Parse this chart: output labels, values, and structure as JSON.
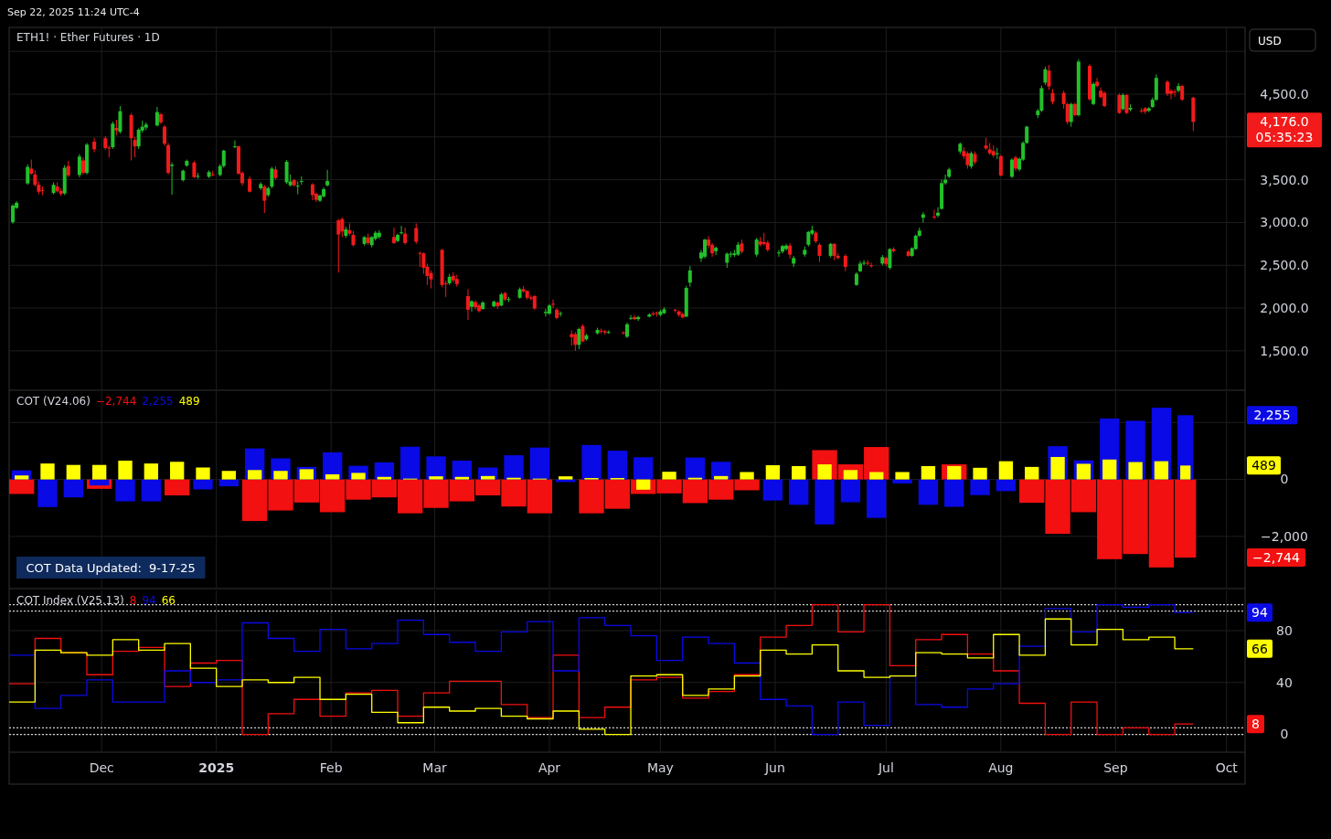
{
  "chart_data": [
    {
      "type": "candlestick",
      "title": "ETH1! · Ether Futures · 1D",
      "subtitle": "Sep 22, 2025 11:24 UTC-4",
      "ylabel": "USD",
      "annotations": [
        "4,176.0",
        "05:35:23"
      ],
      "grid": true,
      "tick_labels": "y",
      "xlim": [
        "2024-11-06",
        "2025-10-06"
      ],
      "xticks": [
        {
          "value": "2024-12-01",
          "label": null
        },
        {
          "value": "2025-01-01",
          "label": null
        },
        {
          "value": "2025-02-01",
          "label": null
        },
        {
          "value": "2025-03-01",
          "label": null
        },
        {
          "value": "2025-04-01",
          "label": null
        },
        {
          "value": "2025-05-01",
          "label": null
        },
        {
          "value": "2025-06-01",
          "label": null
        },
        {
          "value": "2025-07-01",
          "label": null
        },
        {
          "value": "2025-08-01",
          "label": null
        },
        {
          "value": "2025-09-01",
          "label": null
        },
        {
          "value": "2025-10-01",
          "label": null
        }
      ],
      "ylim": [
        1050,
        5280
      ],
      "yticks": [
        {
          "value": 1500,
          "label": "1,500.0"
        },
        {
          "value": 2000,
          "label": "2,000.0"
        },
        {
          "value": 2500,
          "label": "2,500.0"
        },
        {
          "value": 3000,
          "label": "3,000.0"
        },
        {
          "value": 3500,
          "label": "3,500.0"
        },
        {
          "value": 4000,
          "label": null
        },
        {
          "value": 4500,
          "label": "4,500.0"
        },
        {
          "value": 5000,
          "label": null
        }
      ],
      "x": [
        "2024-11-07",
        "2024-11-08",
        "2024-11-11",
        "2024-11-12",
        "2024-11-13",
        "2024-11-14",
        "2024-11-15",
        "2024-11-18",
        "2024-11-19",
        "2024-11-20",
        "2024-11-21",
        "2024-11-22",
        "2024-11-25",
        "2024-11-26",
        "2024-11-27",
        "2024-11-29",
        "2024-12-02",
        "2024-12-03",
        "2024-12-04",
        "2024-12-05",
        "2024-12-06",
        "2024-12-09",
        "2024-12-10",
        "2024-12-11",
        "2024-12-12",
        "2024-12-13",
        "2024-12-16",
        "2024-12-17",
        "2024-12-18",
        "2024-12-19",
        "2024-12-20",
        "2024-12-23",
        "2024-12-24",
        "2024-12-26",
        "2024-12-27",
        "2024-12-30",
        "2024-12-31",
        "2025-01-02",
        "2025-01-03",
        "2025-01-06",
        "2025-01-07",
        "2025-01-08",
        "2025-01-10",
        "2025-01-13",
        "2025-01-14",
        "2025-01-15",
        "2025-01-16",
        "2025-01-17",
        "2025-01-20",
        "2025-01-21",
        "2025-01-22",
        "2025-01-23",
        "2025-01-24",
        "2025-01-27",
        "2025-01-28",
        "2025-01-29",
        "2025-01-30",
        "2025-01-31",
        "2025-02-03",
        "2025-02-04",
        "2025-02-05",
        "2025-02-06",
        "2025-02-07",
        "2025-02-10",
        "2025-02-11",
        "2025-02-12",
        "2025-02-13",
        "2025-02-14",
        "2025-02-18",
        "2025-02-19",
        "2025-02-20",
        "2025-02-21",
        "2025-02-24",
        "2025-02-25",
        "2025-02-26",
        "2025-02-27",
        "2025-02-28",
        "2025-03-03",
        "2025-03-04",
        "2025-03-05",
        "2025-03-06",
        "2025-03-07",
        "2025-03-10",
        "2025-03-11",
        "2025-03-12",
        "2025-03-13",
        "2025-03-14",
        "2025-03-17",
        "2025-03-18",
        "2025-03-19",
        "2025-03-20",
        "2025-03-21",
        "2025-03-24",
        "2025-03-25",
        "2025-03-26",
        "2025-03-27",
        "2025-03-28",
        "2025-03-31",
        "2025-04-01",
        "2025-04-02",
        "2025-04-03",
        "2025-04-04",
        "2025-04-07",
        "2025-04-08",
        "2025-04-09",
        "2025-04-10",
        "2025-04-11",
        "2025-04-14",
        "2025-04-15",
        "2025-04-16",
        "2025-04-17",
        "2025-04-21",
        "2025-04-22",
        "2025-04-23",
        "2025-04-24",
        "2025-04-25",
        "2025-04-28",
        "2025-04-29",
        "2025-04-30",
        "2025-05-01",
        "2025-05-02",
        "2025-05-05",
        "2025-05-06",
        "2025-05-07",
        "2025-05-08",
        "2025-05-09",
        "2025-05-12",
        "2025-05-13",
        "2025-05-14",
        "2025-05-15",
        "2025-05-16",
        "2025-05-19",
        "2025-05-20",
        "2025-05-21",
        "2025-05-22",
        "2025-05-23",
        "2025-05-27",
        "2025-05-28",
        "2025-05-29",
        "2025-05-30",
        "2025-06-02",
        "2025-06-03",
        "2025-06-04",
        "2025-06-05",
        "2025-06-06",
        "2025-06-09",
        "2025-06-10",
        "2025-06-11",
        "2025-06-12",
        "2025-06-13",
        "2025-06-16",
        "2025-06-17",
        "2025-06-18",
        "2025-06-20",
        "2025-06-23",
        "2025-06-24",
        "2025-06-25",
        "2025-06-26",
        "2025-06-27",
        "2025-06-30",
        "2025-07-01",
        "2025-07-02",
        "2025-07-03",
        "2025-07-07",
        "2025-07-08",
        "2025-07-09",
        "2025-07-10",
        "2025-07-11",
        "2025-07-14",
        "2025-07-15",
        "2025-07-16",
        "2025-07-17",
        "2025-07-18",
        "2025-07-21",
        "2025-07-22",
        "2025-07-23",
        "2025-07-24",
        "2025-07-25",
        "2025-07-28",
        "2025-07-29",
        "2025-07-30",
        "2025-07-31",
        "2025-08-01",
        "2025-08-04",
        "2025-08-05",
        "2025-08-06",
        "2025-08-07",
        "2025-08-08",
        "2025-08-11",
        "2025-08-12",
        "2025-08-13",
        "2025-08-14",
        "2025-08-15",
        "2025-08-18",
        "2025-08-19",
        "2025-08-20",
        "2025-08-21",
        "2025-08-22",
        "2025-08-25",
        "2025-08-26",
        "2025-08-27",
        "2025-08-28",
        "2025-08-29",
        "2025-09-02",
        "2025-09-03",
        "2025-09-04",
        "2025-09-05",
        "2025-09-08",
        "2025-09-09",
        "2025-09-10",
        "2025-09-11",
        "2025-09-12",
        "2025-09-15",
        "2025-09-16",
        "2025-09-17",
        "2025-09-18",
        "2025-09-19",
        "2025-09-22"
      ],
      "ohlc": [
        [
          3005,
          3215,
          2985,
          3197
        ],
        [
          3170,
          3250,
          3160,
          3230
        ],
        [
          3457,
          3680,
          3440,
          3650
        ],
        [
          3630,
          3735,
          3560,
          3570
        ],
        [
          3560,
          3610,
          3420,
          3440
        ],
        [
          3440,
          3480,
          3330,
          3360
        ],
        [
          3378,
          3420,
          3320,
          3370
        ],
        [
          3345,
          3470,
          3330,
          3440
        ],
        [
          3420,
          3470,
          3350,
          3365
        ],
        [
          3370,
          3400,
          3310,
          3335
        ],
        [
          3340,
          3670,
          3320,
          3640
        ],
        [
          3660,
          3720,
          3530,
          3550
        ],
        [
          3555,
          3800,
          3530,
          3770
        ],
        [
          3725,
          3760,
          3560,
          3580
        ],
        [
          3580,
          3930,
          3560,
          3910
        ],
        [
          3945,
          3990,
          3820,
          3855
        ],
        [
          3985,
          4010,
          3850,
          3870
        ],
        [
          3875,
          3900,
          3760,
          3870
        ],
        [
          3880,
          4180,
          3860,
          4155
        ],
        [
          4105,
          4200,
          4020,
          4075
        ],
        [
          4060,
          4360,
          4040,
          4300
        ],
        [
          4255,
          4280,
          3725,
          3985
        ],
        [
          3965,
          4000,
          3760,
          3890
        ],
        [
          3890,
          4100,
          3860,
          4085
        ],
        [
          4075,
          4190,
          4050,
          4120
        ],
        [
          4110,
          4170,
          4080,
          4145
        ],
        [
          4135,
          4350,
          4120,
          4290
        ],
        [
          4265,
          4280,
          4150,
          4170
        ],
        [
          4120,
          4140,
          3900,
          3920
        ],
        [
          3905,
          3930,
          3560,
          3580
        ],
        [
          3660,
          3700,
          3325,
          3675
        ],
        [
          3495,
          3620,
          3480,
          3605
        ],
        [
          3665,
          3735,
          3650,
          3720
        ],
        [
          3700,
          3720,
          3520,
          3530
        ],
        [
          3540,
          3580,
          3510,
          3545
        ],
        [
          3535,
          3610,
          3520,
          3590
        ],
        [
          3565,
          3600,
          3540,
          3560
        ],
        [
          3555,
          3680,
          3540,
          3660
        ],
        [
          3660,
          3850,
          3640,
          3840
        ],
        [
          3880,
          3960,
          3870,
          3890
        ],
        [
          3890,
          3900,
          3560,
          3570
        ],
        [
          3580,
          3600,
          3430,
          3460
        ],
        [
          3510,
          3540,
          3350,
          3360
        ],
        [
          3400,
          3470,
          3380,
          3450
        ],
        [
          3420,
          3440,
          3110,
          3255
        ],
        [
          3320,
          3420,
          3300,
          3400
        ],
        [
          3420,
          3650,
          3400,
          3630
        ],
        [
          3620,
          3660,
          3500,
          3520
        ],
        [
          3470,
          3730,
          3450,
          3710
        ],
        [
          3435,
          3560,
          3420,
          3480
        ],
        [
          3495,
          3510,
          3420,
          3435
        ],
        [
          3425,
          3480,
          3330,
          3430
        ],
        [
          3480,
          3540,
          3440,
          3485
        ],
        [
          3445,
          3460,
          3260,
          3320
        ],
        [
          3335,
          3350,
          3240,
          3265
        ],
        [
          3255,
          3330,
          3240,
          3315
        ],
        [
          3305,
          3410,
          3290,
          3390
        ],
        [
          3435,
          3615,
          3420,
          3485
        ],
        [
          3025,
          3040,
          2415,
          2860
        ],
        [
          3040,
          3060,
          2830,
          2895
        ],
        [
          2845,
          2950,
          2820,
          2920
        ],
        [
          2910,
          2990,
          2850,
          2870
        ],
        [
          2855,
          2900,
          2720,
          2735
        ],
        [
          2750,
          2840,
          2730,
          2830
        ],
        [
          2825,
          2870,
          2740,
          2760
        ],
        [
          2735,
          2840,
          2710,
          2830
        ],
        [
          2810,
          2900,
          2790,
          2880
        ],
        [
          2830,
          2910,
          2810,
          2880
        ],
        [
          2830,
          2940,
          2750,
          2760
        ],
        [
          2785,
          2870,
          2770,
          2855
        ],
        [
          2880,
          2960,
          2860,
          2885
        ],
        [
          2870,
          2940,
          2740,
          2760
        ],
        [
          2935,
          2990,
          2750,
          2775
        ],
        [
          2645,
          2660,
          2480,
          2640
        ],
        [
          2640,
          2650,
          2400,
          2470
        ],
        [
          2485,
          2520,
          2270,
          2375
        ],
        [
          2410,
          2440,
          2230,
          2335
        ],
        [
          2680,
          2690,
          2245,
          2270
        ],
        [
          2290,
          2320,
          2130,
          2285
        ],
        [
          2290,
          2400,
          2270,
          2365
        ],
        [
          2375,
          2420,
          2300,
          2325
        ],
        [
          2340,
          2390,
          2250,
          2280
        ],
        [
          2140,
          2220,
          1860,
          1980
        ],
        [
          2015,
          2090,
          1960,
          2080
        ],
        [
          2070,
          2090,
          1980,
          2010
        ],
        [
          2030,
          2050,
          1950,
          1965
        ],
        [
          1990,
          2080,
          1980,
          2065
        ],
        [
          2020,
          2090,
          2010,
          2075
        ],
        [
          2065,
          2080,
          1990,
          2020
        ],
        [
          2030,
          2180,
          2020,
          2160
        ],
        [
          2175,
          2190,
          2080,
          2100
        ],
        [
          2095,
          2130,
          2070,
          2105
        ],
        [
          2120,
          2240,
          2110,
          2220
        ],
        [
          2220,
          2260,
          2180,
          2195
        ],
        [
          2200,
          2210,
          2100,
          2120
        ],
        [
          2125,
          2150,
          2090,
          2110
        ],
        [
          2140,
          2150,
          1980,
          1995
        ],
        [
          1940,
          1990,
          1900,
          1955
        ],
        [
          1935,
          2045,
          1920,
          2030
        ],
        [
          2050,
          2100,
          2000,
          2040
        ],
        [
          1980,
          2000,
          1870,
          1885
        ],
        [
          1935,
          1960,
          1900,
          1940
        ],
        [
          1695,
          1740,
          1560,
          1660
        ],
        [
          1695,
          1720,
          1500,
          1570
        ],
        [
          1570,
          1770,
          1520,
          1755
        ],
        [
          1790,
          1810,
          1600,
          1610
        ],
        [
          1635,
          1700,
          1620,
          1680
        ],
        [
          1705,
          1770,
          1690,
          1745
        ],
        [
          1735,
          1760,
          1700,
          1725
        ],
        [
          1730,
          1745,
          1690,
          1715
        ],
        [
          1715,
          1740,
          1700,
          1720
        ],
        [
          1715,
          1730,
          1690,
          1710
        ],
        [
          1665,
          1830,
          1650,
          1810
        ],
        [
          1880,
          1920,
          1860,
          1885
        ],
        [
          1895,
          1920,
          1860,
          1870
        ],
        [
          1870,
          1910,
          1850,
          1895
        ],
        [
          1900,
          1940,
          1890,
          1925
        ],
        [
          1935,
          1960,
          1910,
          1925
        ],
        [
          1945,
          1960,
          1900,
          1940
        ],
        [
          1920,
          1980,
          1905,
          1960
        ],
        [
          1940,
          2010,
          1930,
          1985
        ],
        [
          1980,
          1990,
          1950,
          1975
        ],
        [
          1960,
          1975,
          1900,
          1920
        ],
        [
          1930,
          1945,
          1880,
          1890
        ],
        [
          1900,
          2260,
          1895,
          2235
        ],
        [
          2297,
          2490,
          2250,
          2440
        ],
        [
          2580,
          2680,
          2540,
          2650
        ],
        [
          2600,
          2810,
          2580,
          2800
        ],
        [
          2800,
          2840,
          2700,
          2730
        ],
        [
          2740,
          2760,
          2600,
          2640
        ],
        [
          2665,
          2720,
          2620,
          2705
        ],
        [
          2530,
          2650,
          2470,
          2635
        ],
        [
          2630,
          2660,
          2590,
          2635
        ],
        [
          2620,
          2680,
          2600,
          2640
        ],
        [
          2625,
          2770,
          2610,
          2740
        ],
        [
          2755,
          2800,
          2640,
          2660
        ],
        [
          2625,
          2820,
          2600,
          2800
        ],
        [
          2780,
          2830,
          2720,
          2740
        ],
        [
          2770,
          2880,
          2730,
          2750
        ],
        [
          2765,
          2790,
          2660,
          2680
        ],
        [
          2640,
          2680,
          2600,
          2650
        ],
        [
          2660,
          2740,
          2640,
          2725
        ],
        [
          2690,
          2750,
          2670,
          2730
        ],
        [
          2730,
          2760,
          2580,
          2625
        ],
        [
          2520,
          2610,
          2480,
          2585
        ],
        [
          2625,
          2720,
          2600,
          2680
        ],
        [
          2740,
          2900,
          2720,
          2890
        ],
        [
          2870,
          2960,
          2850,
          2910
        ],
        [
          2880,
          2900,
          2760,
          2780
        ],
        [
          2740,
          2760,
          2540,
          2610
        ],
        [
          2610,
          2760,
          2590,
          2750
        ],
        [
          2750,
          2760,
          2560,
          2610
        ],
        [
          2610,
          2640,
          2570,
          2585
        ],
        [
          2610,
          2630,
          2430,
          2480
        ],
        [
          2270,
          2420,
          2260,
          2400
        ],
        [
          2430,
          2550,
          2420,
          2520
        ],
        [
          2520,
          2560,
          2500,
          2530
        ],
        [
          2530,
          2560,
          2500,
          2525
        ],
        [
          2500,
          2530,
          2470,
          2495
        ],
        [
          2520,
          2620,
          2500,
          2595
        ],
        [
          2585,
          2600,
          2490,
          2515
        ],
        [
          2470,
          2700,
          2450,
          2690
        ],
        [
          2690,
          2710,
          2650,
          2665
        ],
        [
          2660,
          2680,
          2600,
          2610
        ],
        [
          2610,
          2710,
          2600,
          2700
        ],
        [
          2690,
          2860,
          2680,
          2845
        ],
        [
          2845,
          2940,
          2830,
          2905
        ],
        [
          3055,
          3120,
          3000,
          3095
        ],
        [
          3070,
          3150,
          3040,
          3060
        ],
        [
          3080,
          3180,
          3060,
          3115
        ],
        [
          3160,
          3500,
          3150,
          3460
        ],
        [
          3460,
          3560,
          3440,
          3500
        ],
        [
          3535,
          3640,
          3520,
          3620
        ],
        [
          3830,
          3935,
          3800,
          3920
        ],
        [
          3835,
          3880,
          3740,
          3775
        ],
        [
          3810,
          3830,
          3630,
          3670
        ],
        [
          3655,
          3830,
          3630,
          3810
        ],
        [
          3800,
          3830,
          3680,
          3705
        ],
        [
          3900,
          3990,
          3850,
          3865
        ],
        [
          3855,
          3930,
          3790,
          3810
        ],
        [
          3835,
          3900,
          3760,
          3785
        ],
        [
          3800,
          3870,
          3740,
          3810
        ],
        [
          3775,
          3790,
          3540,
          3550
        ],
        [
          3535,
          3750,
          3520,
          3735
        ],
        [
          3760,
          3780,
          3600,
          3630
        ],
        [
          3620,
          3760,
          3600,
          3745
        ],
        [
          3735,
          3950,
          3720,
          3930
        ],
        [
          3930,
          4130,
          3920,
          4120
        ],
        [
          4255,
          4330,
          4220,
          4307
        ],
        [
          4307,
          4600,
          4290,
          4570
        ],
        [
          4635,
          4820,
          4610,
          4790
        ],
        [
          4775,
          4840,
          4550,
          4590
        ],
        [
          4515,
          4560,
          4380,
          4410
        ],
        [
          4515,
          4540,
          4330,
          4385
        ],
        [
          4385,
          4400,
          4150,
          4175
        ],
        [
          4175,
          4400,
          4120,
          4385
        ],
        [
          4385,
          4400,
          4240,
          4255
        ],
        [
          4255,
          4905,
          4240,
          4880
        ],
        [
          4830,
          4850,
          4420,
          4440
        ],
        [
          4385,
          4640,
          4370,
          4620
        ],
        [
          4645,
          4690,
          4580,
          4595
        ],
        [
          4540,
          4580,
          4450,
          4465
        ],
        [
          4515,
          4530,
          4350,
          4360
        ],
        [
          4490,
          4510,
          4270,
          4280
        ],
        [
          4325,
          4510,
          4310,
          4490
        ],
        [
          4490,
          4500,
          4270,
          4280
        ],
        [
          4320,
          4380,
          4300,
          4340
        ],
        [
          4310,
          4340,
          4280,
          4305
        ],
        [
          4335,
          4350,
          4270,
          4295
        ],
        [
          4305,
          4350,
          4290,
          4335
        ],
        [
          4350,
          4460,
          4340,
          4435
        ],
        [
          4435,
          4730,
          4420,
          4690
        ],
        [
          4645,
          4660,
          4480,
          4505
        ],
        [
          4540,
          4560,
          4440,
          4505
        ],
        [
          4530,
          4560,
          4470,
          4525
        ],
        [
          4540,
          4630,
          4520,
          4595
        ],
        [
          4595,
          4610,
          4420,
          4435
        ],
        [
          4460,
          4470,
          4070,
          4176
        ]
      ]
    },
    {
      "type": "bar",
      "title": "COT (V24.06)",
      "annotations": [
        "COT Data Updated:  9-17-25",
        "−2,744",
        "2,255",
        "489"
      ],
      "grid": true,
      "tick_labels": "y",
      "xlim": [
        "2024-11-06",
        "2025-10-06"
      ],
      "xticks": [
        {
          "value": "2024-12-01",
          "label": null
        },
        {
          "value": "2025-01-01",
          "label": null
        },
        {
          "value": "2025-02-01",
          "label": null
        },
        {
          "value": "2025-03-01",
          "label": null
        },
        {
          "value": "2025-04-01",
          "label": null
        },
        {
          "value": "2025-05-01",
          "label": null
        },
        {
          "value": "2025-06-01",
          "label": null
        },
        {
          "value": "2025-07-01",
          "label": null
        },
        {
          "value": "2025-08-01",
          "label": null
        },
        {
          "value": "2025-09-01",
          "label": null
        },
        {
          "value": "2025-10-01",
          "label": null
        }
      ],
      "ylim": [
        -3800,
        3100
      ],
      "yticks": [
        {
          "value": -2000,
          "label": "−2,000"
        },
        0,
        {
          "value": 2000,
          "label": null
        }
      ],
      "x": [
        "2024-11-06",
        "2024-11-13",
        "2024-11-20",
        "2024-11-27",
        "2024-12-04",
        "2024-12-11",
        "2024-12-18",
        "2024-12-25",
        "2025-01-01",
        "2025-01-08",
        "2025-01-15",
        "2025-01-22",
        "2025-01-29",
        "2025-02-05",
        "2025-02-12",
        "2025-02-19",
        "2025-02-26",
        "2025-03-05",
        "2025-03-12",
        "2025-03-19",
        "2025-03-26",
        "2025-04-02",
        "2025-04-09",
        "2025-04-16",
        "2025-04-23",
        "2025-04-30",
        "2025-05-07",
        "2025-05-14",
        "2025-05-21",
        "2025-05-28",
        "2025-06-04",
        "2025-06-11",
        "2025-06-18",
        "2025-06-25",
        "2025-07-02",
        "2025-07-09",
        "2025-07-16",
        "2025-07-23",
        "2025-07-30",
        "2025-08-06",
        "2025-08-13",
        "2025-08-20",
        "2025-08-27",
        "2025-09-03",
        "2025-09-10",
        "2025-09-17"
      ],
      "series": [
        {
          "color": "#f21010",
          "values": [
            -510,
            null,
            null,
            -330,
            null,
            null,
            -560,
            null,
            null,
            -1460,
            -1090,
            -810,
            -1150,
            -710,
            -630,
            -1190,
            -1000,
            -770,
            -560,
            -950,
            -1190,
            null,
            -1190,
            -1030,
            -510,
            -490,
            -830,
            -710,
            -380,
            null,
            null,
            1030,
            530,
            1140,
            null,
            null,
            530,
            null,
            null,
            -820,
            -1910,
            -1150,
            -2800,
            -2620,
            -3090,
            -2744
          ]
        },
        {
          "color": "#0a0ae6",
          "values": [
            320,
            -970,
            -630,
            -210,
            -770,
            -770,
            null,
            -350,
            -240,
            1090,
            740,
            440,
            950,
            480,
            600,
            1150,
            810,
            660,
            420,
            850,
            1120,
            -90,
            1210,
            1010,
            780,
            null,
            770,
            620,
            null,
            -740,
            -890,
            -1580,
            -800,
            -1350,
            -140,
            -890,
            -960,
            -550,
            -410,
            null,
            1170,
            670,
            2140,
            2060,
            2520,
            2255
          ]
        },
        {
          "color": "#ffff00",
          "values": [
            140,
            560,
            510,
            510,
            660,
            560,
            620,
            420,
            300,
            330,
            300,
            360,
            180,
            230,
            90,
            30,
            110,
            90,
            120,
            60,
            30,
            110,
            50,
            50,
            -360,
            270,
            60,
            120,
            260,
            500,
            470,
            530,
            330,
            260,
            260,
            470,
            470,
            410,
            640,
            440,
            790,
            550,
            700,
            610,
            640,
            489
          ]
        }
      ]
    },
    {
      "type": "step",
      "title": "COT Index (V25.13)",
      "annotations": [
        "8",
        "94",
        "66"
      ],
      "grid": true,
      "xlim": [
        "2024-11-06",
        "2025-10-06"
      ],
      "xticks": [
        {
          "value": "2024-12-01",
          "label": "Dec"
        },
        {
          "value": "2025-01-01",
          "label": "2025"
        },
        {
          "value": "2025-02-01",
          "label": "Feb"
        },
        {
          "value": "2025-03-01",
          "label": "Mar"
        },
        {
          "value": "2025-04-01",
          "label": "Apr"
        },
        {
          "value": "2025-05-01",
          "label": "May"
        },
        {
          "value": "2025-06-01",
          "label": "Jun"
        },
        {
          "value": "2025-07-01",
          "label": "Jul"
        },
        {
          "value": "2025-08-01",
          "label": "Aug"
        },
        {
          "value": "2025-09-01",
          "label": "Sep"
        },
        {
          "value": "2025-10-01",
          "label": "Oct"
        }
      ],
      "ylim": [
        -13,
        111
      ],
      "yticks": [
        0,
        40,
        80
      ],
      "ref_lines": [
        {
          "axis": "y",
          "value": 0,
          "color": "#cfcfcf",
          "line_style": "dotted"
        },
        {
          "axis": "y",
          "value": 5,
          "color": "#cfcfcf",
          "line_style": "dotted"
        },
        {
          "axis": "y",
          "value": 95,
          "color": "#cfcfcf",
          "line_style": "dotted"
        },
        {
          "axis": "y",
          "value": 100,
          "color": "#cfcfcf",
          "line_style": "dotted"
        }
      ],
      "x": [
        "2024-11-06",
        "2024-11-13",
        "2024-11-20",
        "2024-11-27",
        "2024-12-04",
        "2024-12-11",
        "2024-12-18",
        "2024-12-25",
        "2025-01-01",
        "2025-01-08",
        "2025-01-15",
        "2025-01-22",
        "2025-01-29",
        "2025-02-05",
        "2025-02-12",
        "2025-02-19",
        "2025-02-26",
        "2025-03-05",
        "2025-03-12",
        "2025-03-19",
        "2025-03-26",
        "2025-04-02",
        "2025-04-09",
        "2025-04-16",
        "2025-04-23",
        "2025-04-30",
        "2025-05-07",
        "2025-05-14",
        "2025-05-21",
        "2025-05-28",
        "2025-06-04",
        "2025-06-11",
        "2025-06-18",
        "2025-06-25",
        "2025-07-02",
        "2025-07-09",
        "2025-07-16",
        "2025-07-23",
        "2025-07-30",
        "2025-08-06",
        "2025-08-13",
        "2025-08-20",
        "2025-08-27",
        "2025-09-03",
        "2025-09-10",
        "2025-09-17",
        "2025-09-22"
      ],
      "series": [
        {
          "color": "#f21010",
          "values": [
            39,
            74,
            63,
            46,
            64,
            67,
            37,
            55,
            57,
            0,
            16,
            27,
            14,
            32,
            34,
            14,
            32,
            41,
            41,
            23,
            13,
            61,
            13,
            21,
            42,
            44,
            28,
            33,
            46,
            75,
            84,
            100,
            79,
            100,
            53,
            73,
            77,
            62,
            49,
            24,
            0,
            25,
            0,
            5,
            0,
            8,
            8
          ]
        },
        {
          "color": "#0a0ae6",
          "values": [
            61,
            20,
            30,
            42,
            25,
            25,
            49,
            40,
            42,
            86,
            74,
            64,
            81,
            66,
            70,
            88,
            77,
            71,
            64,
            79,
            87,
            49,
            90,
            84,
            76,
            57,
            75,
            70,
            55,
            27,
            22,
            0,
            25,
            7,
            45,
            23,
            21,
            35,
            39,
            68,
            97,
            79,
            100,
            98,
            100,
            94,
            94
          ]
        },
        {
          "color": "#ffff00",
          "values": [
            25,
            65,
            63,
            61,
            73,
            65,
            70,
            51,
            37,
            42,
            40,
            44,
            27,
            31,
            17,
            9,
            21,
            18,
            20,
            14,
            12,
            18,
            4,
            0,
            45,
            46,
            30,
            35,
            45,
            65,
            62,
            69,
            49,
            44,
            45,
            63,
            62,
            59,
            77,
            61,
            89,
            69,
            81,
            73,
            75,
            66,
            66
          ]
        }
      ]
    }
  ]
}
